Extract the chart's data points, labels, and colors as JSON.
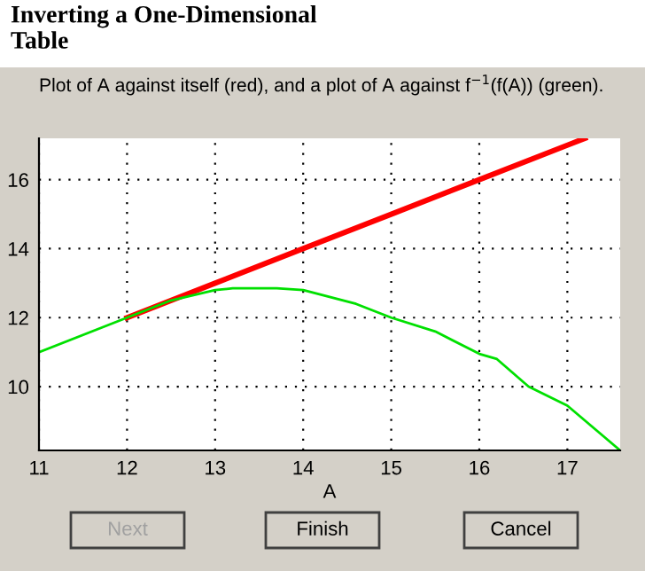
{
  "chart_data": {
    "type": "line",
    "title": "Inverting a One-Dimensional\nTable",
    "subtitle": "Plot of A against itself (red), and a plot of A against f$^{−1}$(f(A)) (green).",
    "xlabel": "A",
    "series": [
      {
        "color": "#ff0000",
        "x": [
          12,
          13,
          14,
          15,
          16,
          17,
          17.2
        ],
        "values": [
          12,
          13,
          14,
          15,
          16,
          17,
          17.2
        ]
      },
      {
        "color": "#00e000",
        "x": [
          11,
          12,
          12.5,
          13,
          13.2,
          13.7,
          14,
          14.6,
          15,
          15.5,
          16,
          16.2,
          16.56,
          17,
          17.6
        ],
        "values": [
          11,
          12,
          12.5,
          12.8,
          12.85,
          12.85,
          12.8,
          12.4,
          12.0,
          11.6,
          10.95,
          10.8,
          10.0,
          9.45,
          8.15
        ]
      }
    ],
    "xlim": [
      11,
      17.6
    ],
    "ylim": [
      8.15,
      17.2
    ],
    "xticks": [
      11,
      12,
      13,
      14,
      15,
      16,
      17
    ],
    "yticks": [
      10,
      12,
      14,
      16
    ],
    "grid": true,
    "line_style": "solid",
    "annotations": [
      "Next",
      "Finish",
      "Cancel"
    ]
  }
}
